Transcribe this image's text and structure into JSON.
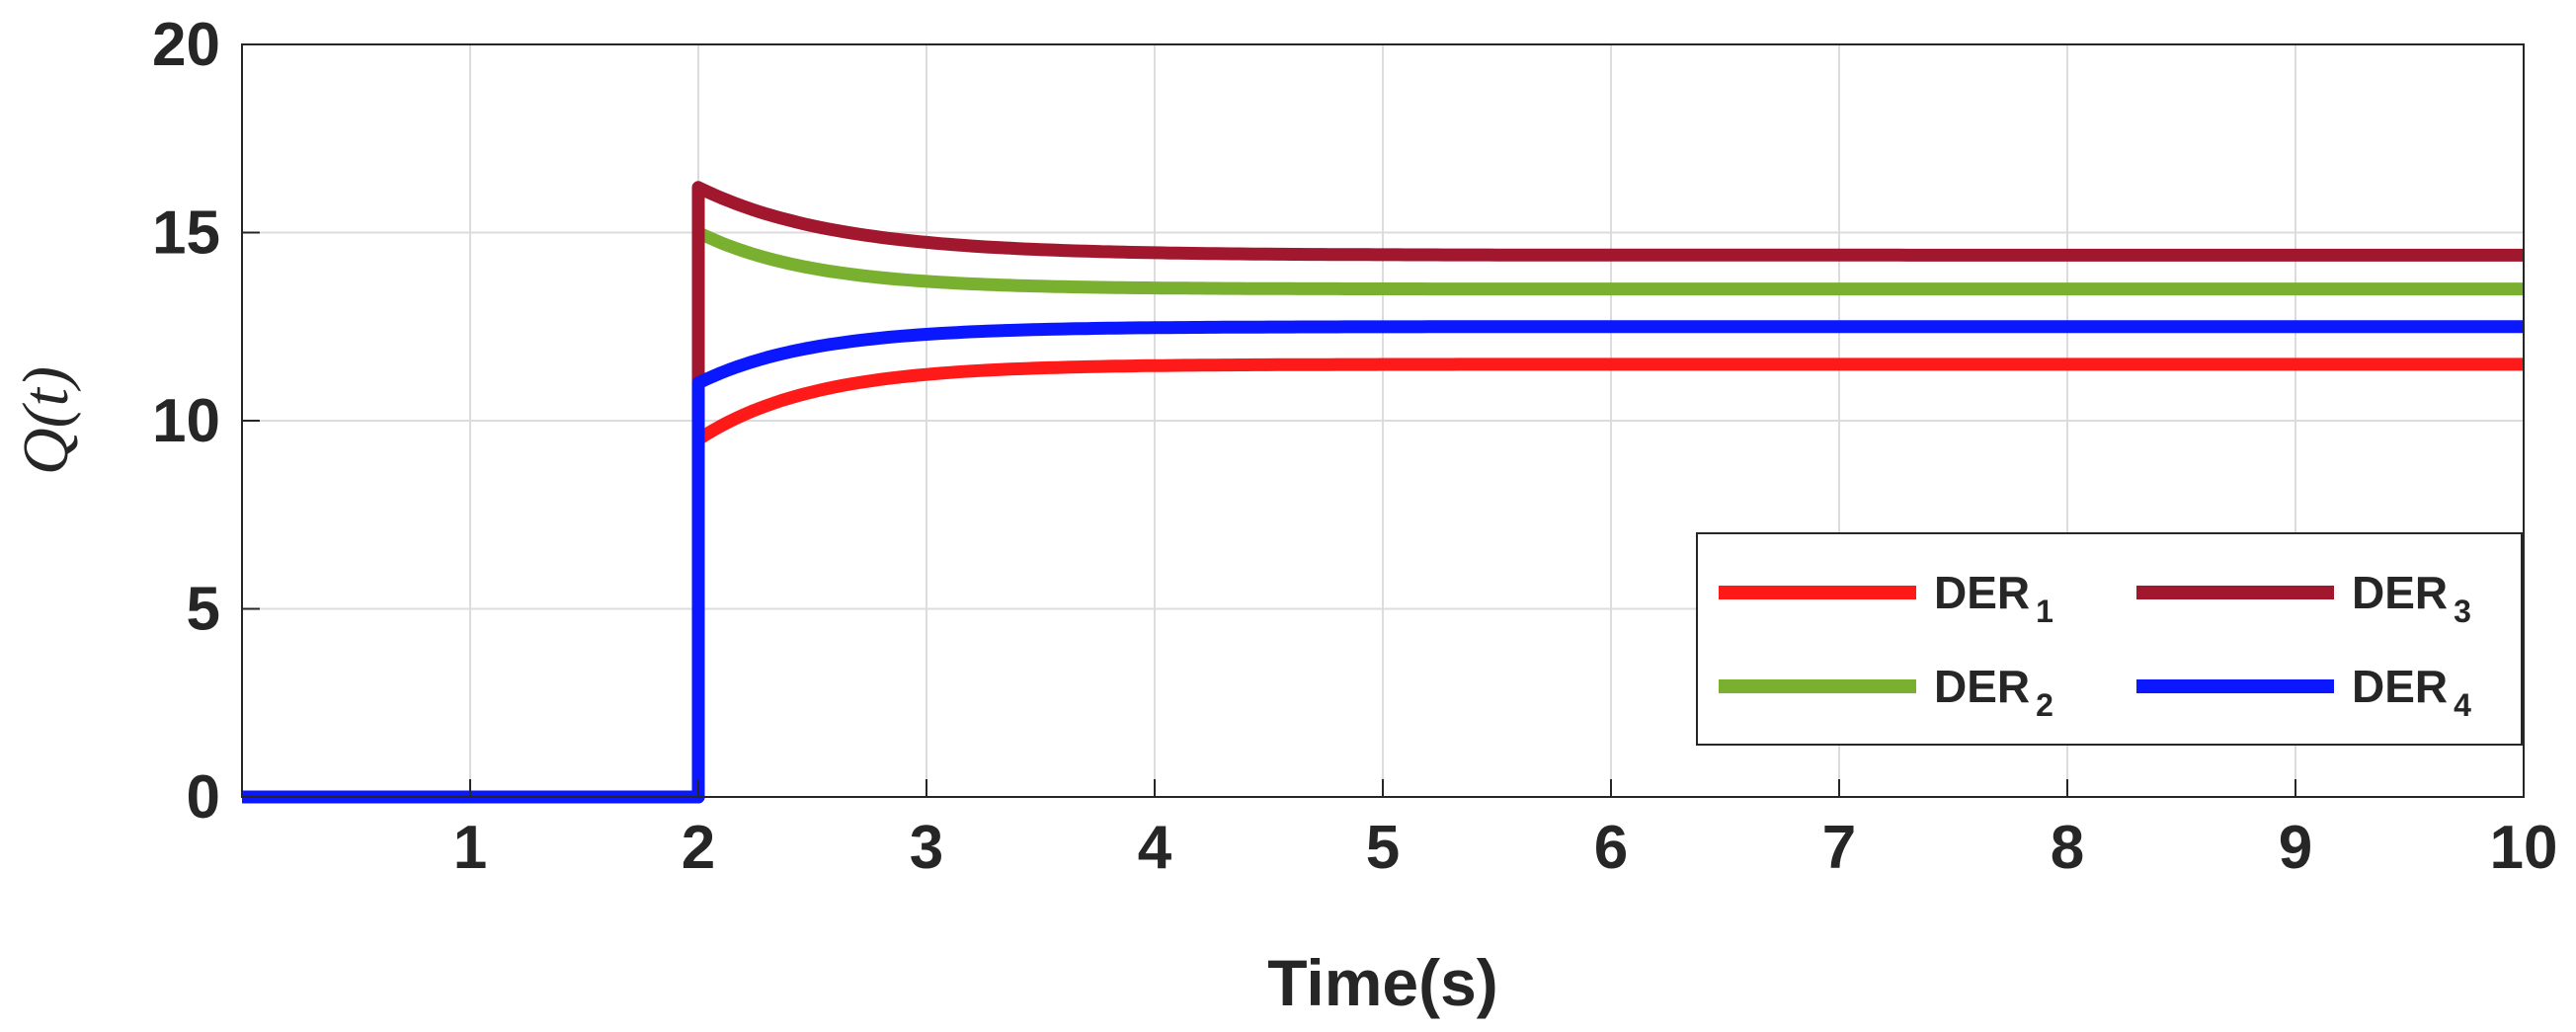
{
  "chart_data": {
    "type": "line",
    "xlabel": "Time(s)",
    "ylabel": "Q(t)",
    "xlim": [
      0,
      10
    ],
    "ylim": [
      0,
      20
    ],
    "xticks": [
      1,
      2,
      3,
      4,
      5,
      6,
      7,
      8,
      9,
      10
    ],
    "yticks": [
      0,
      5,
      10,
      15,
      20
    ],
    "grid": true,
    "legend_position": "lower-right",
    "step_time": 2,
    "series": [
      {
        "name": "DER",
        "sub": "1",
        "color": "#ff1a1a",
        "initial": 0,
        "jump": 9.5,
        "final": 11.5,
        "tau": 0.5
      },
      {
        "name": "DER",
        "sub": "2",
        "color": "#7ab030",
        "initial": 0,
        "jump": 15.0,
        "final": 13.5,
        "tau": 0.5
      },
      {
        "name": "DER",
        "sub": "3",
        "color": "#a0172e",
        "initial": 0,
        "jump": 16.2,
        "final": 14.4,
        "tau": 0.6
      },
      {
        "name": "DER",
        "sub": "4",
        "color": "#0a17ff",
        "initial": 0,
        "jump": 11.0,
        "final": 12.5,
        "tau": 0.5
      }
    ]
  }
}
